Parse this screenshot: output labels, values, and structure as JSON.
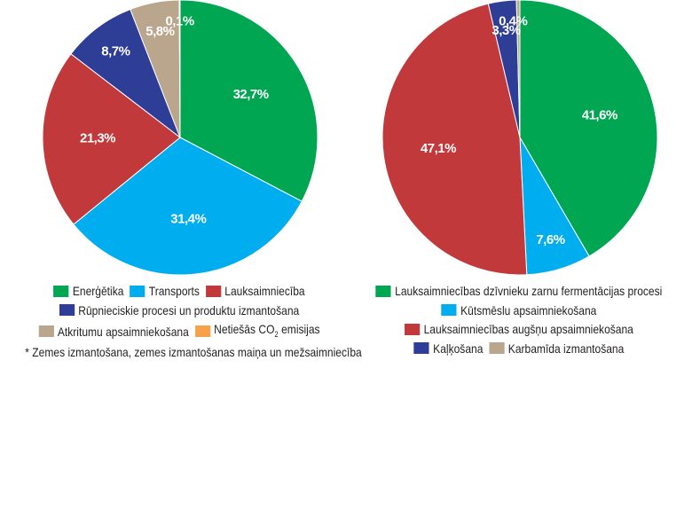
{
  "chart_data": [
    {
      "type": "pie",
      "start": "top",
      "direction": "clockwise",
      "slices": [
        {
          "label": "Enerģētika",
          "value": 32.7,
          "text": "32,7%",
          "color": "#00a651"
        },
        {
          "label": "Transports",
          "value": 31.4,
          "text": "31,4%",
          "color": "#00aeef"
        },
        {
          "label": "Lauksaimniecība",
          "value": 21.3,
          "text": "21,3%",
          "color": "#c1393b"
        },
        {
          "label": "Rūpnieciskie procesi un produktu izmantošana",
          "value": 8.7,
          "text": "8,7%",
          "color": "#2e3d95"
        },
        {
          "label": "Atkritumu apsaimniekošana",
          "value": 5.8,
          "text": "5,8%",
          "color": "#b9a68c"
        },
        {
          "label": "Netiešās CO",
          "label_sub": "2",
          "label_tail": " emisijas",
          "value": 0.1,
          "text": "0,1%",
          "color": "#f7a14a"
        }
      ],
      "legend_rows": [
        [
          0,
          1,
          2
        ],
        [
          3
        ],
        [
          4,
          5
        ]
      ],
      "note": "* Zemes izmantošana, zemes izmantošanas maiņa un mežsaimniecība"
    },
    {
      "type": "pie",
      "start": "top",
      "direction": "clockwise",
      "slices": [
        {
          "label": "Lauksaimniecības dzīvnieku zarnu fermentācijas procesi",
          "value": 41.6,
          "text": "41,6%",
          "color": "#00a651"
        },
        {
          "label": "Kūtsmēslu apsaimniekošana",
          "value": 7.6,
          "text": "7,6%",
          "color": "#00aeef"
        },
        {
          "label": "Lauksaimniecības augšņu apsaimniekošana",
          "value": 47.1,
          "text": "47,1%",
          "color": "#c1393b"
        },
        {
          "label": "Kaļķošana",
          "value": 3.3,
          "text": "3,3%",
          "color": "#2e3d95"
        },
        {
          "label": "Karbamīda izmantošana",
          "value": 0.4,
          "text": "0,4%",
          "color": "#b9a68c"
        }
      ],
      "legend_rows": [
        [
          0
        ],
        [
          1
        ],
        [
          2
        ],
        [
          3,
          4
        ]
      ]
    }
  ]
}
